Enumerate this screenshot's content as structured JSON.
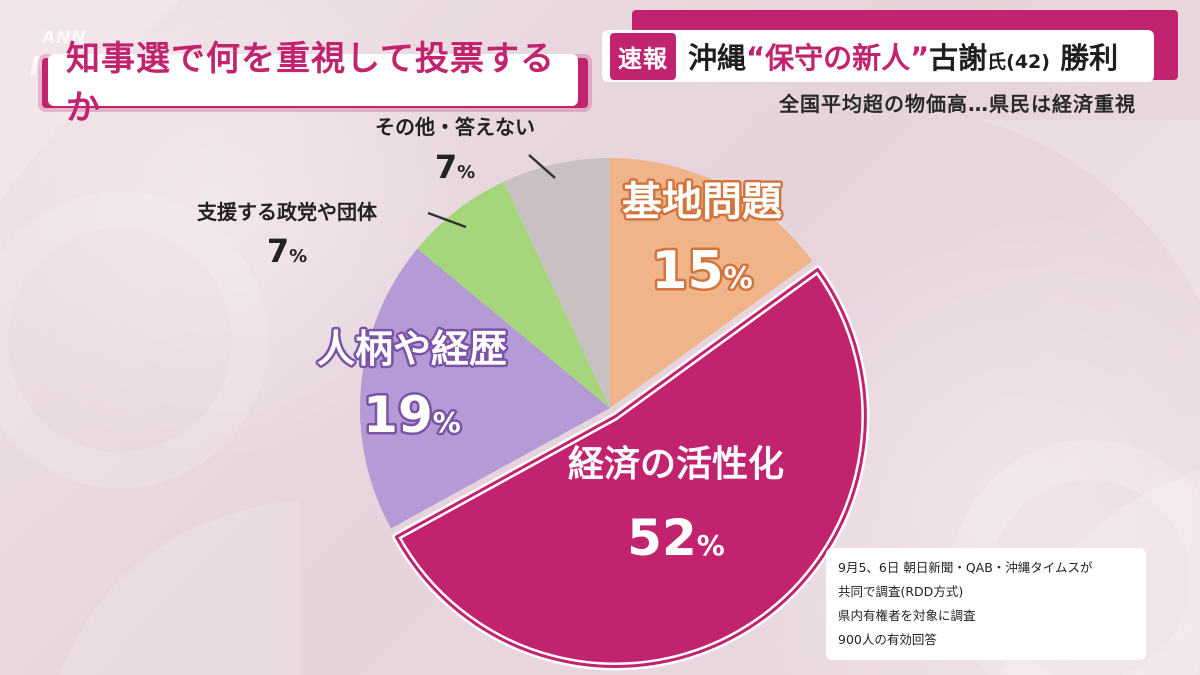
{
  "broadcaster": {
    "line1": "ANN",
    "line2": "NEWS"
  },
  "title": "知事選で何を重視して投票するか",
  "headline": {
    "flash_label": "速報",
    "part1": "沖縄",
    "part2": "“保守の新人”",
    "part3": "古謝",
    "part4": "氏(42)",
    "part5": "勝利"
  },
  "sub_headline": "全国平均超の物価高…県民は経済重視",
  "chart_data": {
    "type": "pie",
    "title": "知事選で何を重視して投票するか",
    "slices": [
      {
        "label": "基地問題",
        "value": 15,
        "display": "15",
        "unit": "%",
        "color": "#efb48a"
      },
      {
        "label": "経済の活性化",
        "value": 52,
        "display": "52",
        "unit": "%",
        "color": "#c2236f",
        "highlighted": true
      },
      {
        "label": "人柄や経歴",
        "value": 19,
        "display": "19",
        "unit": "%",
        "color": "#b59bd6"
      },
      {
        "label": "支援する政党や団体",
        "value": 7,
        "display": "7",
        "unit": "%",
        "color": "#a6d67c"
      },
      {
        "label": "その他・答えない",
        "value": 7,
        "display": "7",
        "unit": "%",
        "color": "#c9c0c2"
      }
    ]
  },
  "source": {
    "line1": "9月5、6日 朝日新聞・QAB・沖縄タイムスが",
    "line2": "共同で調査(RDD方式)",
    "line3": "県内有権者を対象に調査",
    "line4": "900人の有効回答"
  }
}
